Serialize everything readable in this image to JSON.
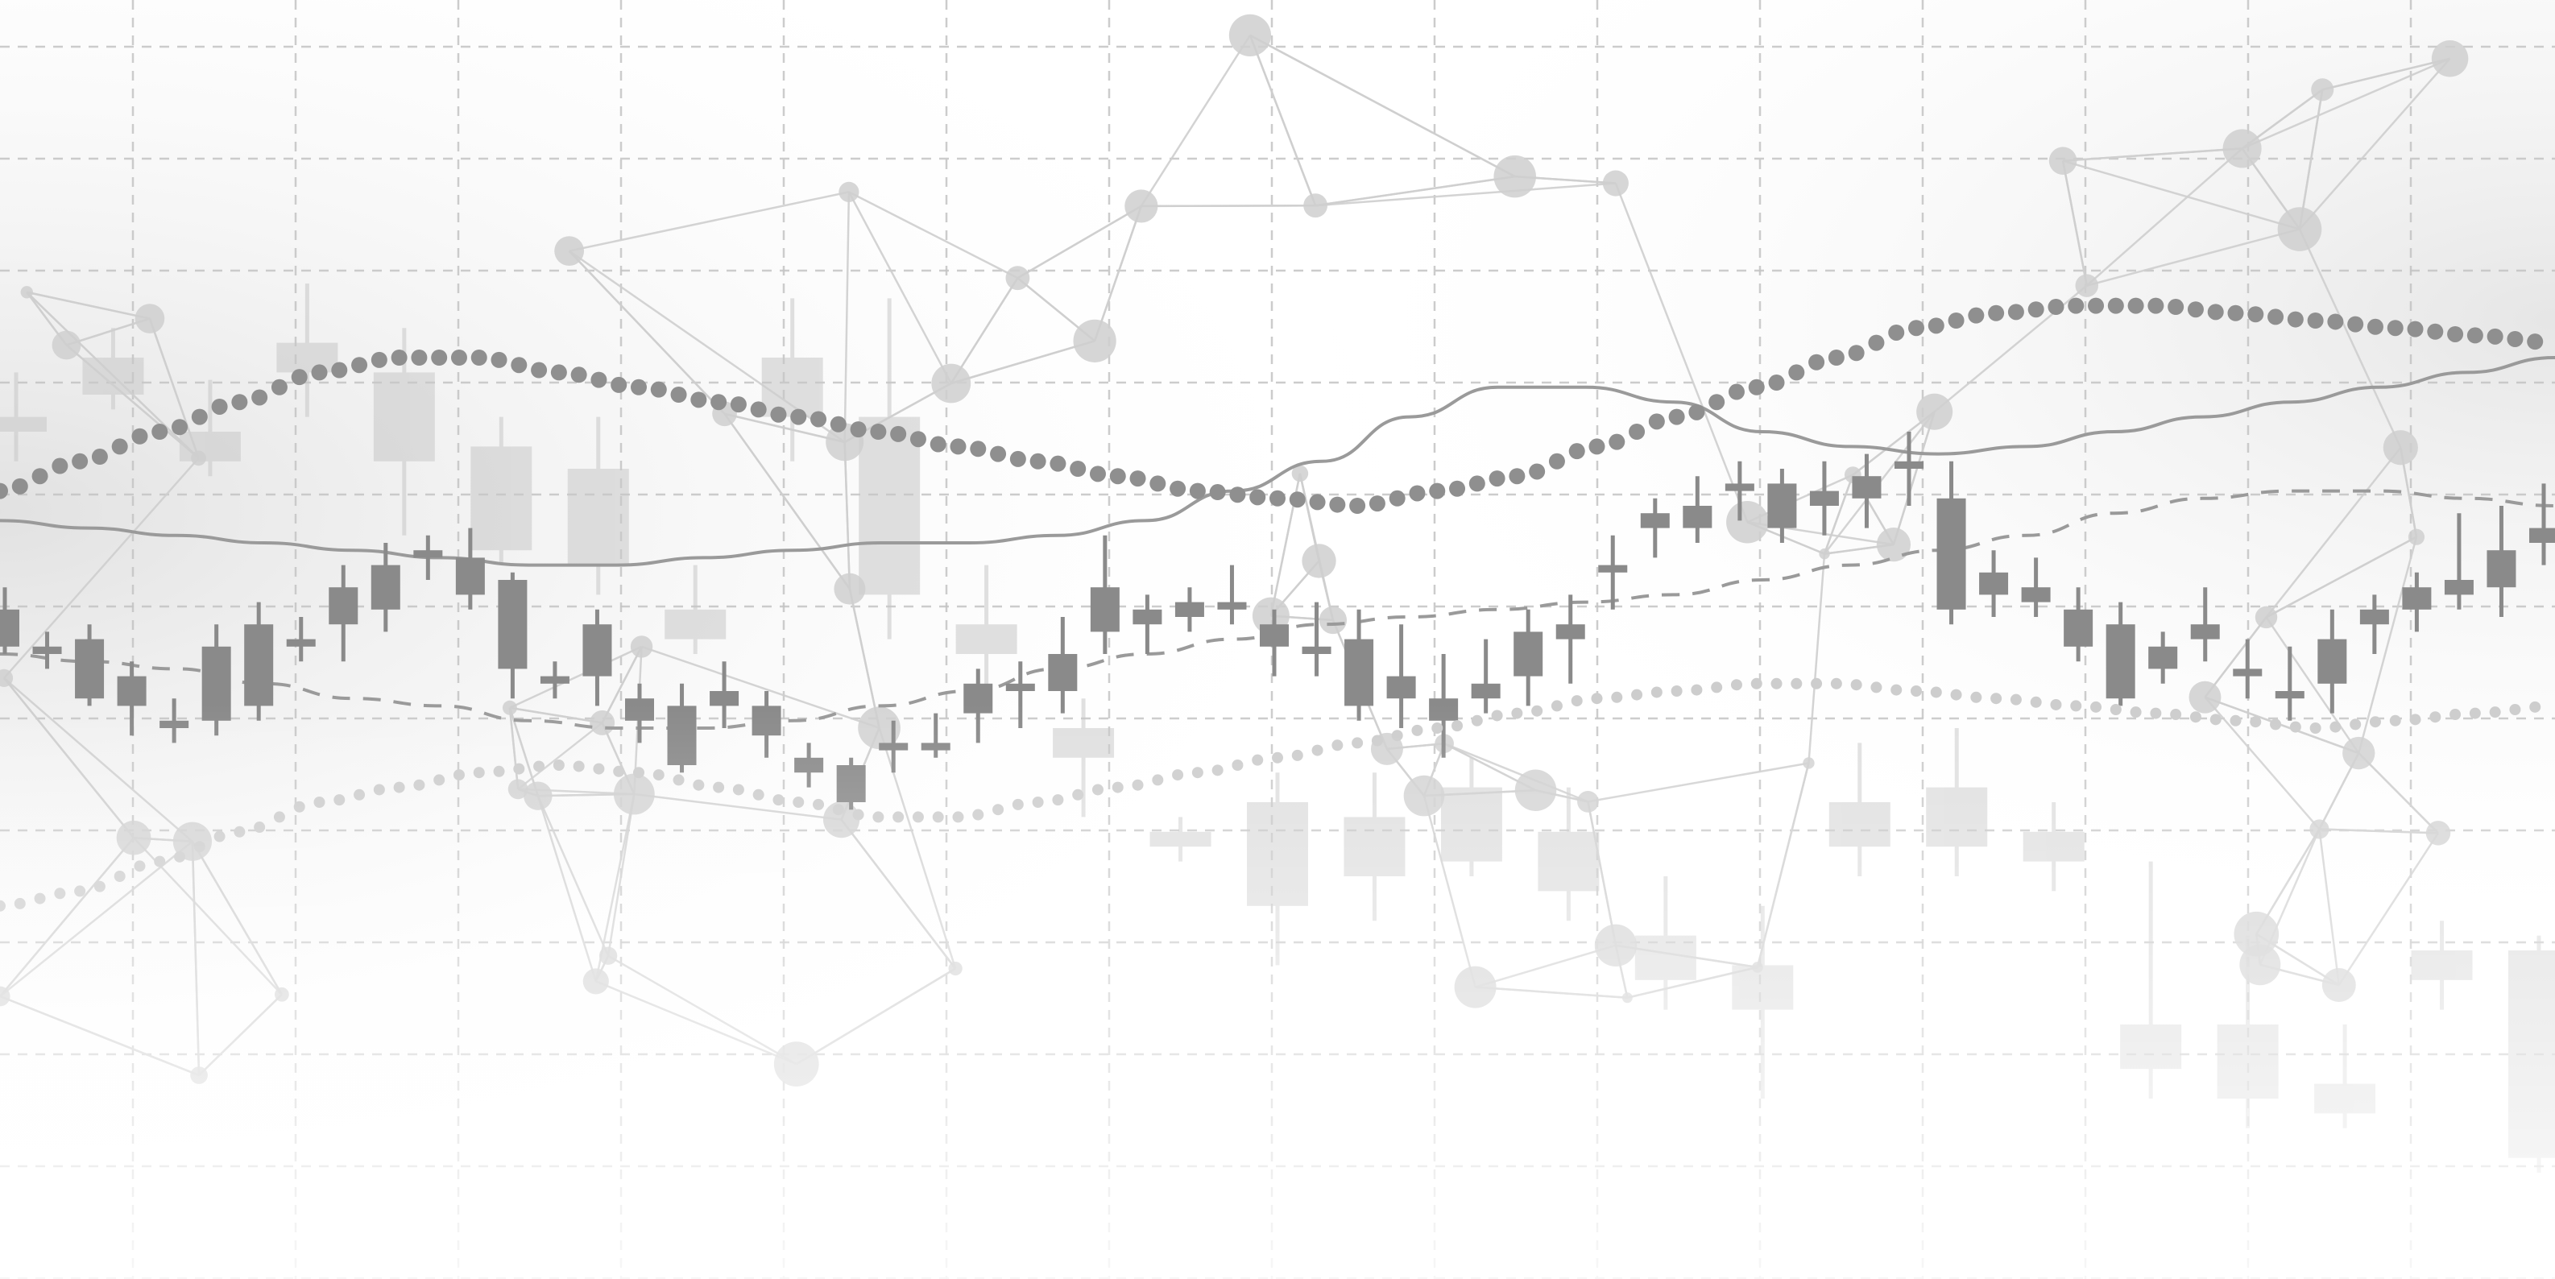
{
  "chart_data": {
    "type": "candlestick",
    "title": "",
    "xlabel": "",
    "ylabel": "",
    "grid": true,
    "legend": "none",
    "tick_labels": "none",
    "ylim": [
      0,
      100
    ],
    "colors": {
      "candle_main": "#8a8a8a",
      "candle_back": "#c8c8c8",
      "grid": "#c4c4c4",
      "network": "#cfcfcf",
      "dots": "#8f8f8f",
      "dots_faint": "#cdcdcd",
      "trend": "#9a9a9a",
      "dashed_trend": "#9a9a9a",
      "vignette_left": "#e6e6e6",
      "vignette_right": "#ededed"
    },
    "foreground_candles": {
      "count": 61,
      "ohlc": [
        [
          46,
          49,
          40,
          41
        ],
        [
          41,
          43,
          38,
          40
        ],
        [
          42,
          44,
          33,
          34
        ],
        [
          37,
          39,
          29,
          33
        ],
        [
          31,
          34,
          28,
          30
        ],
        [
          31,
          44,
          29,
          41
        ],
        [
          33,
          47,
          31,
          44
        ],
        [
          42,
          45,
          39,
          41
        ],
        [
          44,
          52,
          39,
          49
        ],
        [
          46,
          55,
          43,
          52
        ],
        [
          53,
          56,
          50,
          54
        ],
        [
          53,
          57,
          46,
          48
        ],
        [
          50,
          51,
          34,
          38
        ],
        [
          37,
          39,
          34,
          36
        ],
        [
          44,
          46,
          33,
          37
        ],
        [
          34,
          36,
          28,
          31
        ],
        [
          33,
          36,
          24,
          25
        ],
        [
          35,
          39,
          30,
          33
        ],
        [
          33,
          35,
          26,
          29
        ],
        [
          26,
          28,
          22,
          24
        ],
        [
          20,
          26,
          19,
          25
        ],
        [
          28,
          31,
          24,
          27
        ],
        [
          27,
          32,
          26,
          28
        ],
        [
          32,
          38,
          28,
          36
        ],
        [
          36,
          39,
          30,
          35
        ],
        [
          35,
          45,
          32,
          40
        ],
        [
          49,
          56,
          40,
          43
        ],
        [
          46,
          48,
          40,
          44
        ],
        [
          45,
          49,
          43,
          47
        ],
        [
          47,
          52,
          44,
          46
        ],
        [
          44,
          46,
          37,
          41
        ],
        [
          41,
          47,
          37,
          40
        ],
        [
          42,
          46,
          31,
          33
        ],
        [
          37,
          44,
          30,
          34
        ],
        [
          34,
          40,
          26,
          31
        ],
        [
          36,
          42,
          32,
          34
        ],
        [
          37,
          46,
          33,
          43
        ],
        [
          42,
          48,
          36,
          44
        ],
        [
          52,
          56,
          46,
          51
        ],
        [
          57,
          61,
          53,
          59
        ],
        [
          60,
          64,
          55,
          57
        ],
        [
          62,
          66,
          58,
          63
        ],
        [
          63,
          65,
          55,
          57
        ],
        [
          60,
          66,
          56,
          62
        ],
        [
          61,
          67,
          57,
          64
        ],
        [
          65,
          70,
          60,
          66
        ],
        [
          61,
          66,
          44,
          46
        ],
        [
          51,
          54,
          45,
          48
        ],
        [
          49,
          53,
          45,
          47
        ],
        [
          46,
          49,
          39,
          41
        ],
        [
          44,
          47,
          33,
          34
        ],
        [
          41,
          43,
          36,
          38
        ],
        [
          44,
          49,
          39,
          42
        ],
        [
          37,
          42,
          34,
          38
        ],
        [
          35,
          41,
          31,
          34
        ],
        [
          36,
          46,
          32,
          42
        ],
        [
          44,
          48,
          40,
          46
        ],
        [
          46,
          51,
          43,
          49
        ],
        [
          48,
          59,
          46,
          50
        ],
        [
          49,
          60,
          45,
          54
        ],
        [
          55,
          63,
          52,
          57
        ]
      ]
    },
    "background_candles": {
      "count": 27,
      "ohlc": [
        [
          72,
          78,
          66,
          70
        ],
        [
          75,
          84,
          73,
          80
        ],
        [
          70,
          77,
          64,
          66
        ],
        [
          78,
          90,
          72,
          82
        ],
        [
          66,
          84,
          56,
          78
        ],
        [
          68,
          72,
          52,
          54
        ],
        [
          65,
          72,
          48,
          52
        ],
        [
          42,
          52,
          40,
          46
        ],
        [
          80,
          88,
          66,
          72
        ],
        [
          72,
          88,
          42,
          48
        ],
        [
          44,
          52,
          34,
          40
        ],
        [
          26,
          34,
          18,
          30
        ],
        [
          16,
          18,
          12,
          14
        ],
        [
          20,
          24,
          -2,
          6
        ],
        [
          18,
          24,
          4,
          10
        ],
        [
          22,
          26,
          10,
          12
        ],
        [
          16,
          22,
          4,
          8
        ],
        [
          -4,
          10,
          -8,
          2
        ],
        [
          -2,
          6,
          -20,
          -8
        ],
        [
          20,
          28,
          10,
          14
        ],
        [
          22,
          30,
          10,
          14
        ],
        [
          16,
          20,
          8,
          12
        ],
        [
          -10,
          12,
          -20,
          -16
        ],
        [
          -10,
          2,
          -24,
          -20
        ],
        [
          -18,
          -10,
          -24,
          -22
        ],
        [
          0,
          4,
          -8,
          -4
        ],
        [
          0,
          2,
          -30,
          -28
        ]
      ]
    },
    "overlays": {
      "moving_average_dotted": [
        62,
        66,
        70,
        74,
        78,
        80,
        80,
        78,
        76,
        74,
        72,
        70,
        68,
        66,
        64,
        62,
        61,
        60,
        62,
        64,
        68,
        72,
        76,
        80,
        84,
        86,
        87,
        87,
        86,
        85,
        84,
        83,
        82
      ],
      "moving_average_dotted_low": [
        6,
        8,
        12,
        16,
        20,
        22,
        24,
        25,
        24,
        22,
        20,
        18,
        18,
        20,
        22,
        24,
        26,
        28,
        30,
        32,
        34,
        35,
        36,
        36,
        35,
        34,
        33,
        32,
        31,
        30,
        31,
        32,
        33
      ],
      "trend_solid": [
        58,
        57,
        56,
        55,
        54,
        53,
        52,
        52,
        53,
        54,
        55,
        55,
        56,
        58,
        62,
        66,
        72,
        76,
        76,
        74,
        70,
        68,
        67,
        68,
        70,
        72,
        74,
        76,
        78,
        80
      ],
      "trend_dashed": [
        40,
        39,
        38,
        36,
        34,
        33,
        31,
        30,
        30,
        31,
        33,
        35,
        38,
        40,
        42,
        44,
        45,
        46,
        47,
        48,
        50,
        52,
        54,
        56,
        59,
        61,
        62,
        62,
        61,
        60
      ]
    }
  }
}
